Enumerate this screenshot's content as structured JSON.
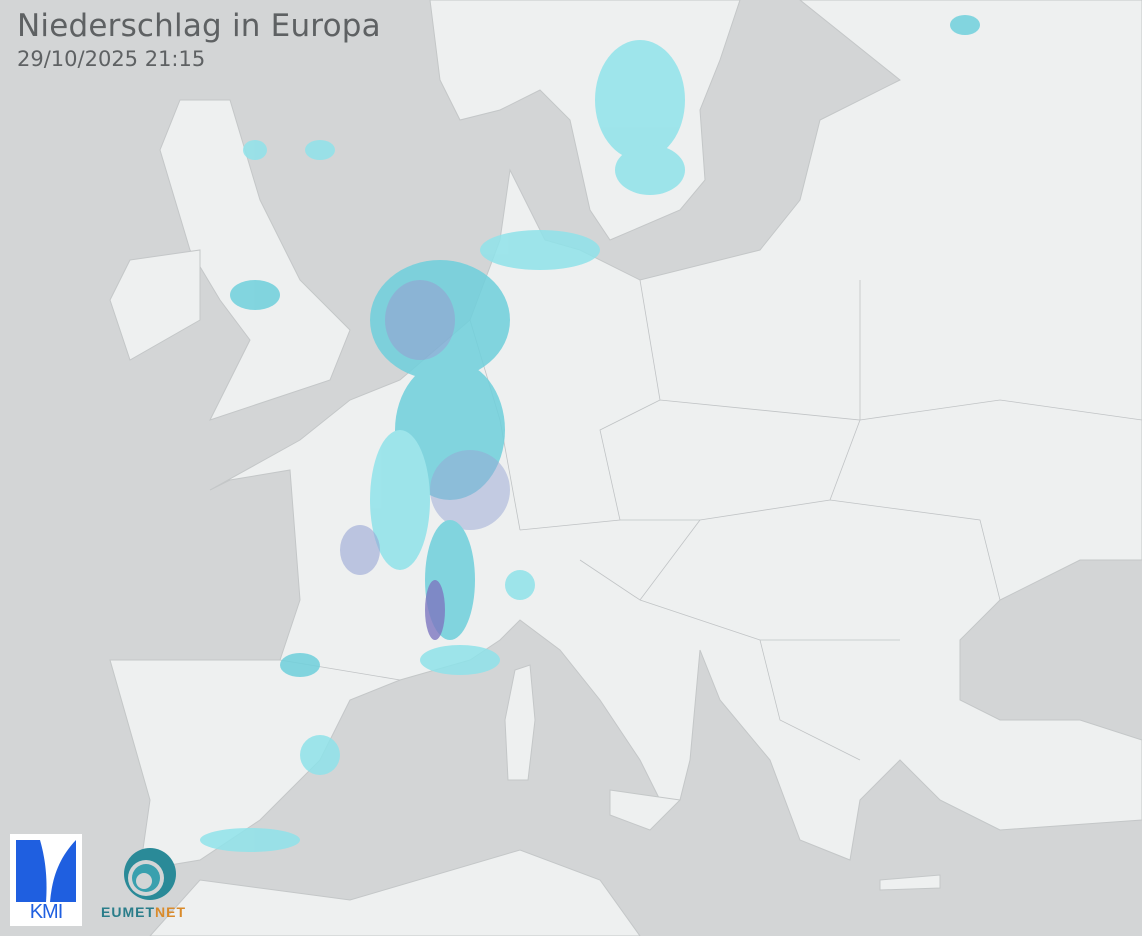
{
  "header": {
    "title": "Niederschlag in Europa",
    "timestamp": "29/10/2025 21:15"
  },
  "logos": {
    "kmi": "KMI",
    "eumetnet_a": "EUMET",
    "eumetnet_b": "NET"
  },
  "colors": {
    "sea": "#d3d5d6",
    "land": "#eef0f0",
    "border": "#b5b8ba",
    "precip_light": "#8fe3ea",
    "precip_mid": "#5fc8d8",
    "precip_heavy": "#7a82c8"
  }
}
